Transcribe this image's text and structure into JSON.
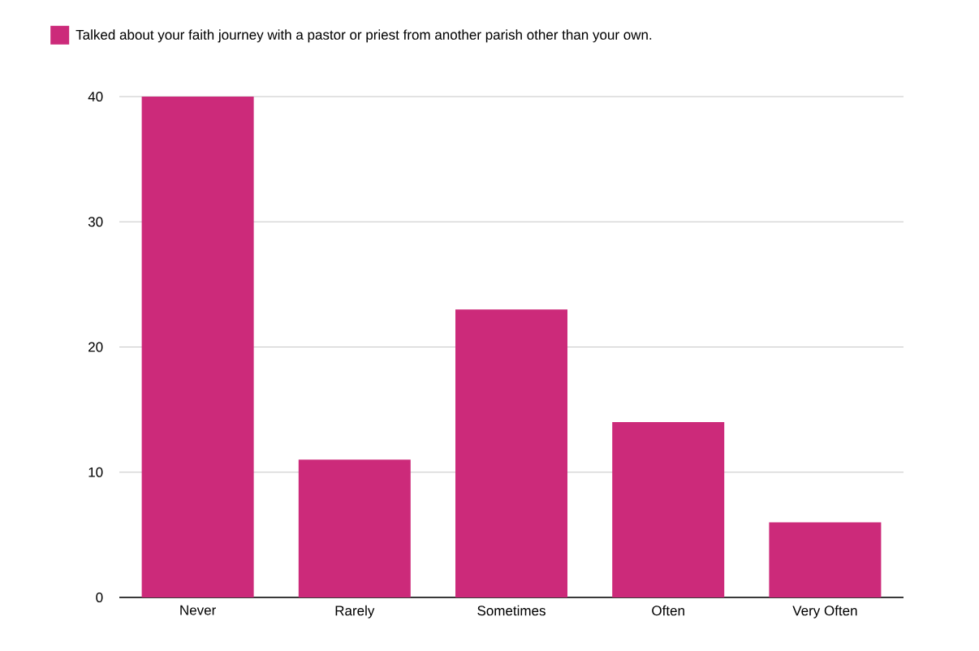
{
  "chart_data": {
    "type": "bar",
    "categories": [
      "Never",
      "Rarely",
      "Sometimes",
      "Often",
      "Very Often"
    ],
    "series": [
      {
        "name": "Talked about your faith journey with a pastor or priest from another parish other than your own.",
        "color": "#cc2a7a",
        "values": [
          40,
          11,
          23,
          14,
          6
        ]
      }
    ],
    "ylim": [
      0,
      40
    ],
    "yticks": [
      0,
      10,
      20,
      30,
      40
    ],
    "grid": "y",
    "legend": "top left"
  }
}
